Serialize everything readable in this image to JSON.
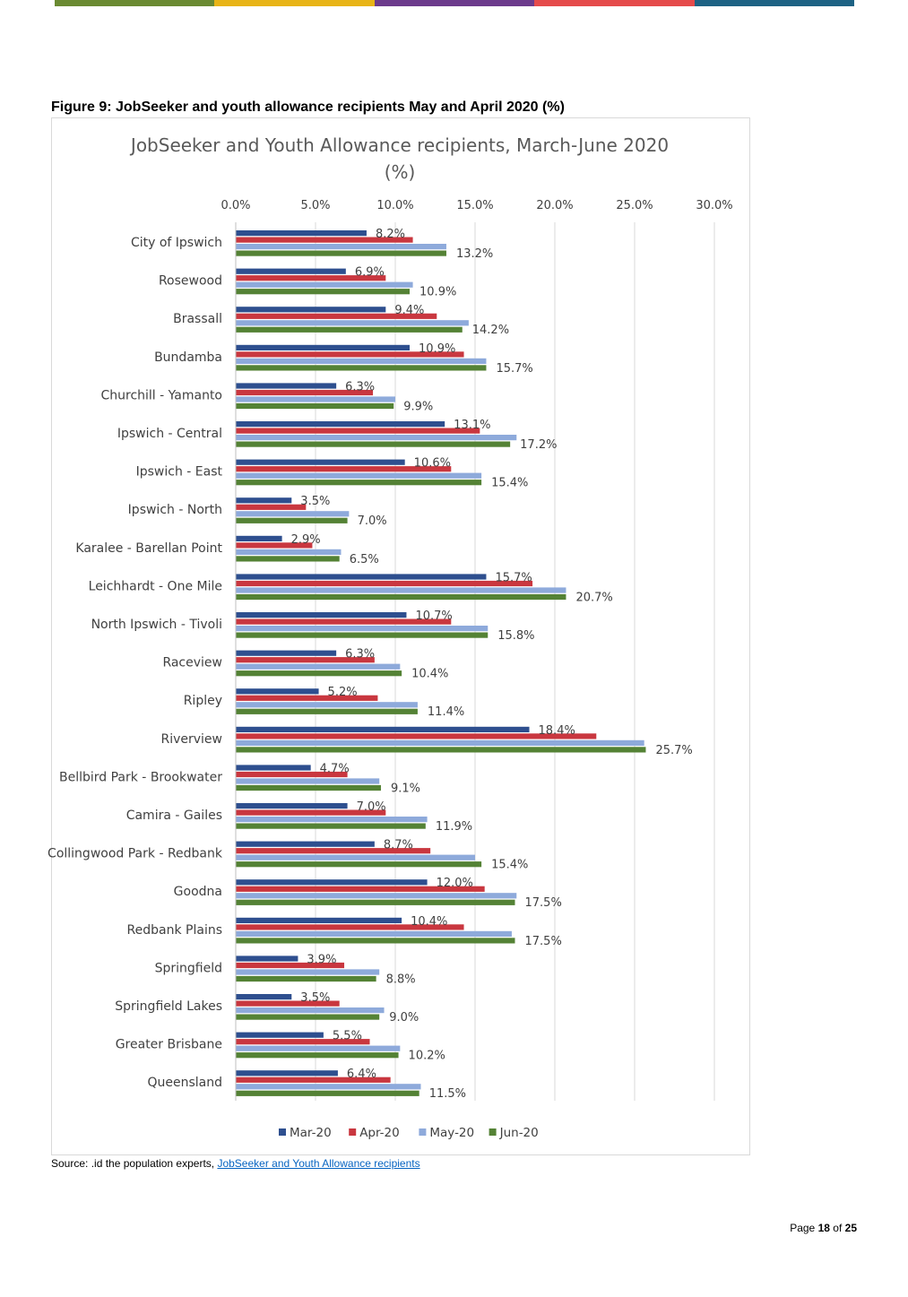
{
  "header": {
    "bar_colors": [
      "#6a8a32",
      "#e8b417",
      "#6c3b8c",
      "#e54b4b",
      "#1d6284"
    ]
  },
  "figure_title": "Figure 9: JobSeeker and youth allowance recipients May and April 2020 (%)",
  "source": {
    "prefix": "Source: .id the population experts, ",
    "link_text": "JobSeeker and Youth Allowance recipients"
  },
  "page": {
    "label": "Page",
    "current": "18",
    "of": "of",
    "total": "25"
  },
  "chart_data": {
    "type": "bar",
    "orientation": "horizontal",
    "title_line1": "JobSeeker and Youth Allowance recipients, March-June 2020",
    "title_line2": "(%)",
    "xlim": [
      0,
      30
    ],
    "xticks": [
      "0.0%",
      "5.0%",
      "10.0%",
      "15.0%",
      "20.0%",
      "25.0%",
      "30.0%"
    ],
    "grid": "vertical",
    "legend_position": "bottom",
    "categories": [
      "City of Ipswich",
      "Rosewood",
      "Brassall",
      "Bundamba",
      "Churchill - Yamanto",
      "Ipswich - Central",
      "Ipswich - East",
      "Ipswich - North",
      "Karalee - Barellan Point",
      "Leichhardt - One Mile",
      "North Ipswich - Tivoli",
      "Raceview",
      "Ripley",
      "Riverview",
      "Bellbird Park - Brookwater",
      "Camira - Gailes",
      "Collingwood Park - Redbank",
      "Goodna",
      "Redbank Plains",
      "Springfield",
      "Springfield Lakes",
      "Greater Brisbane",
      "Queensland"
    ],
    "series": [
      {
        "name": "Mar-20",
        "color": "#2e4f8f",
        "values": [
          8.2,
          6.9,
          9.4,
          10.9,
          6.3,
          13.1,
          10.6,
          3.5,
          2.9,
          15.7,
          10.7,
          6.3,
          5.2,
          18.4,
          4.7,
          7.0,
          8.7,
          12.0,
          10.4,
          3.9,
          3.5,
          5.5,
          6.4
        ],
        "labels": [
          "8.2%",
          "6.9%",
          "9.4%",
          "10.9%",
          "6.3%",
          "13.1%",
          "10.6%",
          "3.5%",
          "2.9%",
          "15.7%",
          "10.7%",
          "6.3%",
          "5.2%",
          "18.4%",
          "4.7%",
          "7.0%",
          "8.7%",
          "12.0%",
          "10.4%",
          "3.9%",
          "3.5%",
          "5.5%",
          "6.4%"
        ]
      },
      {
        "name": "Apr-20",
        "color": "#c9373f",
        "values": [
          11.1,
          9.4,
          12.6,
          14.3,
          8.6,
          15.3,
          13.5,
          4.4,
          4.8,
          18.6,
          13.5,
          8.7,
          8.9,
          22.6,
          7.0,
          9.4,
          12.2,
          15.6,
          14.3,
          6.8,
          6.5,
          8.4,
          9.7
        ]
      },
      {
        "name": "May-20",
        "color": "#8eaadb",
        "values": [
          13.2,
          11.1,
          14.6,
          15.7,
          10.0,
          17.6,
          15.4,
          7.1,
          6.6,
          20.7,
          15.8,
          10.3,
          11.4,
          25.6,
          9.0,
          12.0,
          15.0,
          17.6,
          17.3,
          9.0,
          9.3,
          10.3,
          11.6
        ]
      },
      {
        "name": "Jun-20",
        "color": "#548235",
        "values": [
          13.2,
          10.9,
          14.2,
          15.7,
          9.9,
          17.2,
          15.4,
          7.0,
          6.5,
          20.7,
          15.8,
          10.4,
          11.4,
          25.7,
          9.1,
          11.9,
          15.4,
          17.5,
          17.5,
          8.8,
          9.0,
          10.2,
          11.5
        ],
        "labels": [
          "13.2%",
          "10.9%",
          "14.2%",
          "15.7%",
          "9.9%",
          "17.2%",
          "15.4%",
          "7.0%",
          "6.5%",
          "20.7%",
          "15.8%",
          "10.4%",
          "11.4%",
          "25.7%",
          "9.1%",
          "11.9%",
          "15.4%",
          "17.5%",
          "17.5%",
          "8.8%",
          "9.0%",
          "10.2%",
          "11.5%"
        ]
      }
    ]
  }
}
